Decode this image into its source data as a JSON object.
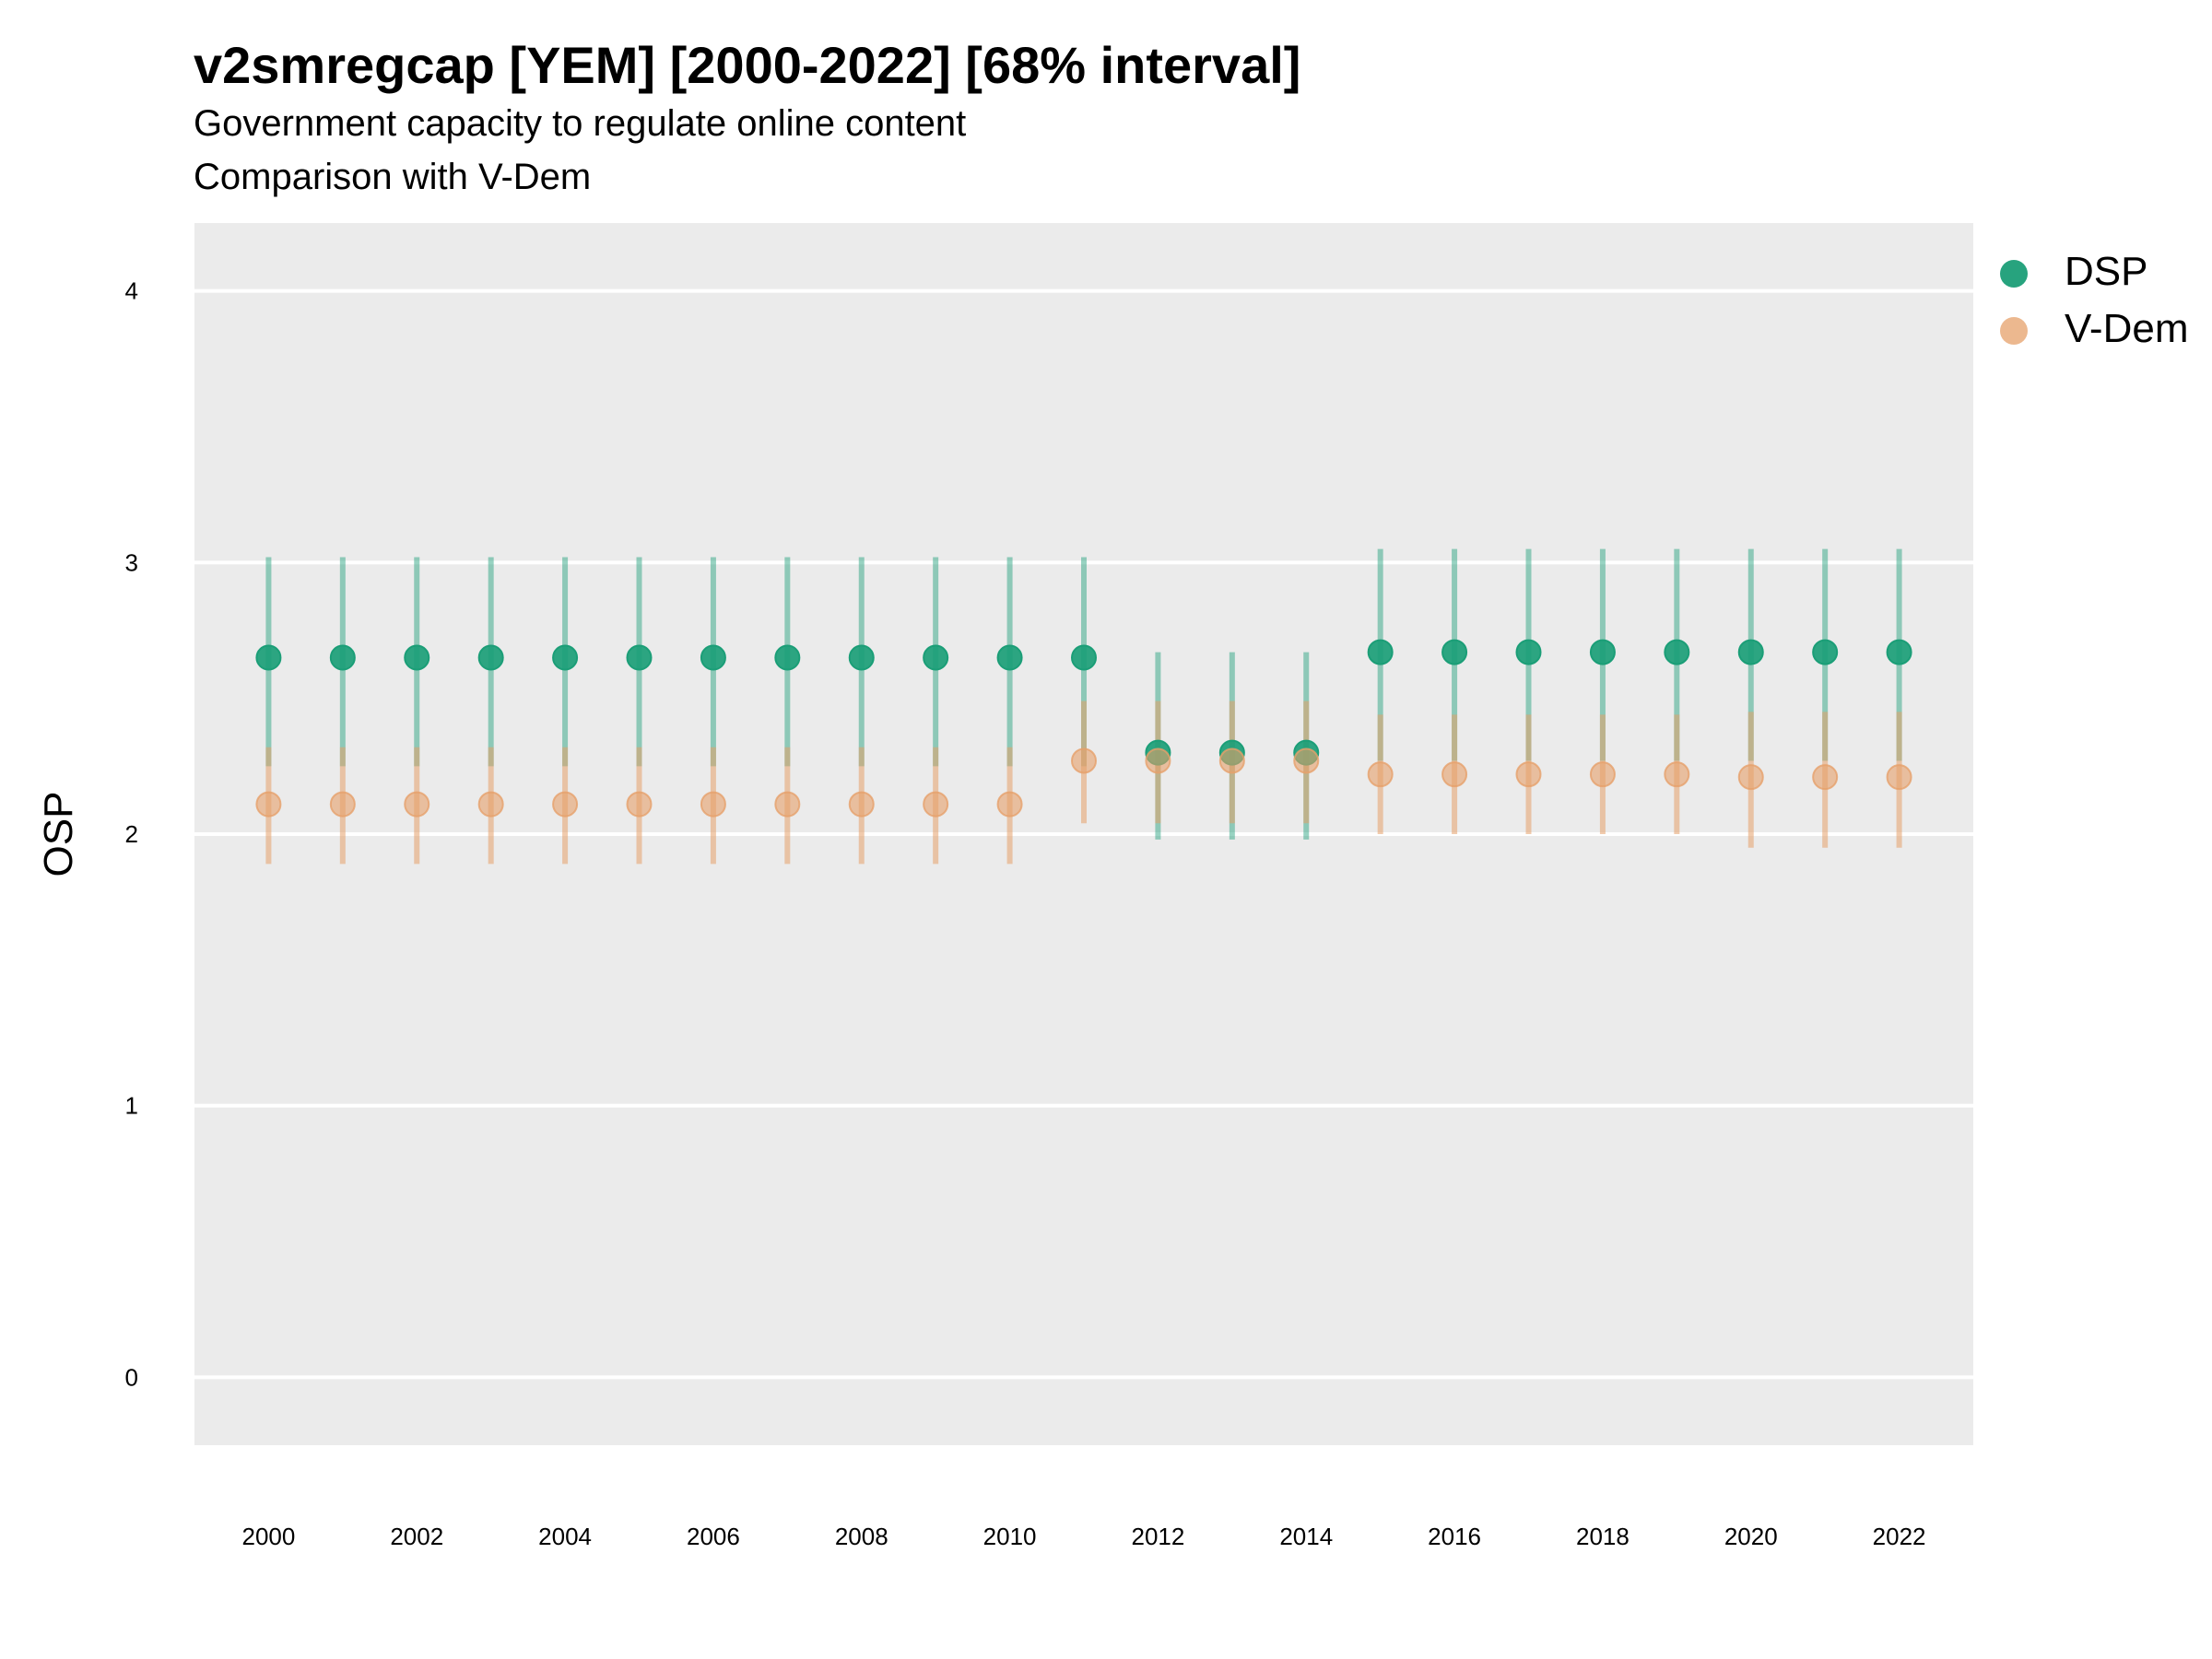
{
  "title": "v2smregcap [YEM] [2000-2022] [68% interval]",
  "subtitle_line1": "Government capacity to regulate online content",
  "subtitle_line2": "Comparison with V-Dem",
  "legend": [
    {
      "label": "DSP",
      "color": "#1b9e77"
    },
    {
      "label": "V-Dem",
      "color": "#e6a06a"
    }
  ],
  "colors": {
    "panel_bg": "#ebebeb",
    "gridline": "#ffffff",
    "dsp": "#1b9e77",
    "vdem": "#e6a06a"
  },
  "chart_data": {
    "type": "scatter",
    "title": "v2smregcap [YEM] [2000-2022] [68% interval]",
    "ylabel": "OSP",
    "xlabel": "",
    "ylim": [
      -0.25,
      4.25
    ],
    "xlim": [
      1999,
      2023
    ],
    "yticks": [
      0,
      1,
      2,
      3,
      4
    ],
    "xticks": [
      2000,
      2002,
      2004,
      2006,
      2008,
      2010,
      2012,
      2014,
      2016,
      2018,
      2020,
      2022
    ],
    "grid": true,
    "legend_position": "right",
    "series": [
      {
        "name": "DSP",
        "x": [
          2000,
          2001,
          2002,
          2003,
          2004,
          2005,
          2006,
          2007,
          2008,
          2009,
          2010,
          2011,
          2012,
          2013,
          2014,
          2015,
          2016,
          2017,
          2018,
          2019,
          2020,
          2021,
          2022
        ],
        "y": [
          2.65,
          2.65,
          2.65,
          2.65,
          2.65,
          2.65,
          2.65,
          2.65,
          2.65,
          2.65,
          2.65,
          2.65,
          2.3,
          2.3,
          2.3,
          2.67,
          2.67,
          2.67,
          2.67,
          2.67,
          2.67,
          2.67,
          2.67
        ],
        "lower": [
          2.25,
          2.25,
          2.25,
          2.25,
          2.25,
          2.25,
          2.25,
          2.25,
          2.25,
          2.25,
          2.25,
          2.25,
          1.98,
          1.98,
          1.98,
          2.27,
          2.27,
          2.27,
          2.27,
          2.27,
          2.27,
          2.27,
          2.27
        ],
        "upper": [
          3.02,
          3.02,
          3.02,
          3.02,
          3.02,
          3.02,
          3.02,
          3.02,
          3.02,
          3.02,
          3.02,
          3.02,
          2.67,
          2.67,
          2.67,
          3.05,
          3.05,
          3.05,
          3.05,
          3.05,
          3.05,
          3.05,
          3.05
        ]
      },
      {
        "name": "V-Dem",
        "x": [
          2000,
          2001,
          2002,
          2003,
          2004,
          2005,
          2006,
          2007,
          2008,
          2009,
          2010,
          2011,
          2012,
          2013,
          2014,
          2015,
          2016,
          2017,
          2018,
          2019,
          2020,
          2021,
          2022
        ],
        "y": [
          2.11,
          2.11,
          2.11,
          2.11,
          2.11,
          2.11,
          2.11,
          2.11,
          2.11,
          2.11,
          2.11,
          2.27,
          2.27,
          2.27,
          2.27,
          2.22,
          2.22,
          2.22,
          2.22,
          2.22,
          2.21,
          2.21,
          2.21
        ],
        "lower": [
          1.89,
          1.89,
          1.89,
          1.89,
          1.89,
          1.89,
          1.89,
          1.89,
          1.89,
          1.89,
          1.89,
          2.04,
          2.04,
          2.04,
          2.04,
          2.0,
          2.0,
          2.0,
          2.0,
          2.0,
          1.95,
          1.95,
          1.95
        ],
        "upper": [
          2.32,
          2.32,
          2.32,
          2.32,
          2.32,
          2.32,
          2.32,
          2.32,
          2.32,
          2.32,
          2.32,
          2.49,
          2.49,
          2.49,
          2.49,
          2.44,
          2.44,
          2.44,
          2.44,
          2.44,
          2.45,
          2.45,
          2.45
        ]
      }
    ]
  }
}
